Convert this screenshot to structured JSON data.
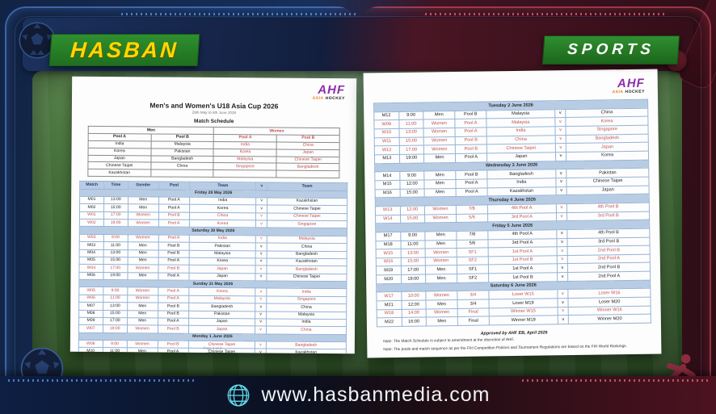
{
  "brand": {
    "hasban": "HASBAN",
    "sports": "SPORTS",
    "website": "www.hasbanmedia.com"
  },
  "colors": {
    "badge_green": "#2f8f2f",
    "hasban_yellow": "#ffd800",
    "women_red": "#c0504d",
    "table_header_blue": "#b8cce4",
    "ahf_purple": "#8b2fa8",
    "ahf_orange": "#e8821a"
  },
  "document": {
    "logo": {
      "mark": "AHF",
      "asia": "ASIA",
      "hockey": "HOCKEY"
    },
    "title": "Men's and Women's U18 Asia Cup 2026",
    "subtitle": "29th May to 6th June 2026",
    "schedule_heading": "Match Schedule",
    "pools": {
      "men_label": "Men",
      "women_label": "Women",
      "pool_columns": [
        "Pool A",
        "Pool B",
        "Pool A",
        "Pool B"
      ],
      "men_pool_a": [
        "India",
        "Korea",
        "Japan",
        "Chinese Taipei",
        "Kazakhstan"
      ],
      "men_pool_b": [
        "Malaysia",
        "Pakistan",
        "Bangladesh",
        "China"
      ],
      "women_pool_a": [
        "India",
        "Korea",
        "Malaysia",
        "Singapore"
      ],
      "women_pool_b": [
        "China",
        "Japan",
        "Chinese Taipei",
        "Bangladesh"
      ]
    },
    "table_headers": [
      "Match",
      "Time",
      "Gender",
      "Pool",
      "Team",
      "v",
      "Team"
    ],
    "page1_sections": [
      {
        "date": "Friday 29 May 2026",
        "rows": [
          [
            "M01",
            "13:00",
            "Men",
            "Pool A",
            "India",
            "v",
            "Kazakhstan"
          ],
          [
            "M02",
            "15:00",
            "Men",
            "Pool A",
            "Korea",
            "v",
            "Chinese Taipei"
          ],
          [
            "W01",
            "17:00",
            "Women",
            "Pool B",
            "China",
            "v",
            "Chinese Taipei"
          ],
          [
            "W02",
            "19:00",
            "Women",
            "Pool A",
            "Korea",
            "v",
            "Singapore"
          ]
        ]
      },
      {
        "date": "Saturday 30 May 2026",
        "rows": [
          [
            "W03",
            "9:00",
            "Women",
            "Pool A",
            "India",
            "v",
            "Malaysia"
          ],
          [
            "M03",
            "11:00",
            "Men",
            "Pool B",
            "Pakistan",
            "v",
            "China"
          ],
          [
            "M04",
            "13:00",
            "Men",
            "Pool B",
            "Malaysia",
            "v",
            "Bangladesh"
          ],
          [
            "M05",
            "15:00",
            "Men",
            "Pool A",
            "Korea",
            "v",
            "Kazakhstan"
          ],
          [
            "W04",
            "17:00",
            "Women",
            "Pool B",
            "Japan",
            "v",
            "Bangladesh"
          ],
          [
            "M06",
            "19:00",
            "Men",
            "Pool A",
            "Japan",
            "v",
            "Chinese Taipei"
          ]
        ]
      },
      {
        "date": "Sunday 31 May 2026",
        "rows": [
          [
            "W05",
            "9:00",
            "Women",
            "Pool A",
            "Korea",
            "v",
            "India"
          ],
          [
            "W06",
            "11:00",
            "Women",
            "Pool A",
            "Malaysia",
            "v",
            "Singapore"
          ],
          [
            "M07",
            "13:00",
            "Men",
            "Pool B",
            "Bangladesh",
            "v",
            "China"
          ],
          [
            "M08",
            "15:00",
            "Men",
            "Pool B",
            "Pakistan",
            "v",
            "Malaysia"
          ],
          [
            "M09",
            "17:00",
            "Men",
            "Pool A",
            "Japan",
            "v",
            "India"
          ],
          [
            "W07",
            "19:00",
            "Women",
            "Pool B",
            "Japan",
            "v",
            "China"
          ]
        ]
      },
      {
        "date": "Monday 1 June 2026",
        "rows": [
          [
            "W08",
            "9:00",
            "Women",
            "Pool B",
            "Chinese Taipei",
            "v",
            "Bangladesh"
          ],
          [
            "M10",
            "11:00",
            "Men",
            "Pool A",
            "Chinese Taipei",
            "v",
            "Kazakhstan"
          ],
          [
            "M11",
            "13:00",
            "Men",
            "Pool A",
            "Korea",
            "v",
            "India"
          ]
        ]
      }
    ],
    "page2_sections": [
      {
        "date": "Tuesday 2 June 2026",
        "rows": [
          [
            "M12",
            "9:00",
            "Men",
            "Pool B",
            "Malaysia",
            "v",
            "China"
          ],
          [
            "W09",
            "11:00",
            "Women",
            "Pool A",
            "Malaysia",
            "v",
            "Korea"
          ],
          [
            "W10",
            "13:00",
            "Women",
            "Pool A",
            "India",
            "v",
            "Singapore"
          ],
          [
            "W11",
            "15:00",
            "Women",
            "Pool B",
            "China",
            "v",
            "Bangladesh"
          ],
          [
            "W12",
            "17:00",
            "Women",
            "Pool B",
            "Chinese Taipei",
            "v",
            "Japan"
          ],
          [
            "M13",
            "19:00",
            "Men",
            "Pool A",
            "Japan",
            "v",
            "Korea"
          ]
        ]
      },
      {
        "date": "Wednesday 3 June 2026",
        "rows": [
          [
            "M14",
            "9:00",
            "Men",
            "Pool B",
            "Bangladesh",
            "v",
            "Pakistan"
          ],
          [
            "M15",
            "12:00",
            "Men",
            "Pool A",
            "India",
            "v",
            "Chinese Taipei"
          ],
          [
            "M16",
            "15:00",
            "Men",
            "Pool A",
            "Kazakhstan",
            "v",
            "Japan"
          ]
        ]
      },
      {
        "date": "Thursday 4 June 2026",
        "rows": [
          [
            "W13",
            "12:00",
            "Women",
            "7/8",
            "4th Pool A",
            "v",
            "4th Pool B"
          ],
          [
            "W14",
            "15:00",
            "Women",
            "5/6",
            "3rd Pool A",
            "v",
            "3rd Pool B"
          ]
        ]
      },
      {
        "date": "Friday 5 June 2026",
        "rows": [
          [
            "M17",
            "9:00",
            "Men",
            "7/8",
            "4th Pool A",
            "v",
            "4th Pool B"
          ],
          [
            "M18",
            "11:00",
            "Men",
            "5/6",
            "3rd Pool A",
            "v",
            "3rd Pool B"
          ],
          [
            "W15",
            "13:00",
            "Women",
            "SF1",
            "1st Pool A",
            "v",
            "2nd Pool B"
          ],
          [
            "W16",
            "15:00",
            "Women",
            "SF2",
            "1st Pool B",
            "v",
            "2nd Pool A"
          ],
          [
            "M19",
            "17:00",
            "Men",
            "SF1",
            "1st Pool A",
            "v",
            "2nd Pool B"
          ],
          [
            "M20",
            "19:00",
            "Men",
            "SF2",
            "1st Pool B",
            "v",
            "2nd Pool A"
          ]
        ]
      },
      {
        "date": "Saturday 6 June 2026",
        "rows": [
          [
            "W17",
            "10:00",
            "Women",
            "3/4",
            "Loser W15",
            "v",
            "Loser W16"
          ],
          [
            "M21",
            "12:00",
            "Men",
            "3/4",
            "Loser M19",
            "v",
            "Loser M20"
          ],
          [
            "W18",
            "14:00",
            "Women",
            "Final",
            "Winner W15",
            "v",
            "Winner W16"
          ],
          [
            "M22",
            "16:00",
            "Men",
            "Final",
            "Winner M19",
            "v",
            "Winner M20"
          ]
        ]
      }
    ],
    "approved": "Approved by AHF EB, April 2026",
    "notes": [
      "Note: The Match Schedule is subject to amendment at the discretion of AHF.",
      "Note: The pools and match sequence as per the FIH Competition Policies and Tournament Regulations are based on the FIH World Rankings."
    ],
    "page_footer": "Page 1 of 2"
  }
}
